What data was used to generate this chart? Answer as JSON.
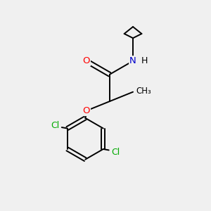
{
  "background_color": "#f0f0f0",
  "bond_color": "#000000",
  "atom_colors": {
    "O": "#ff0000",
    "N": "#0000cc",
    "Cl": "#00aa00",
    "C": "#000000",
    "H": "#000000"
  },
  "figsize": [
    3.0,
    3.0
  ],
  "dpi": 100,
  "lw": 1.4,
  "fontsize": 9.5
}
